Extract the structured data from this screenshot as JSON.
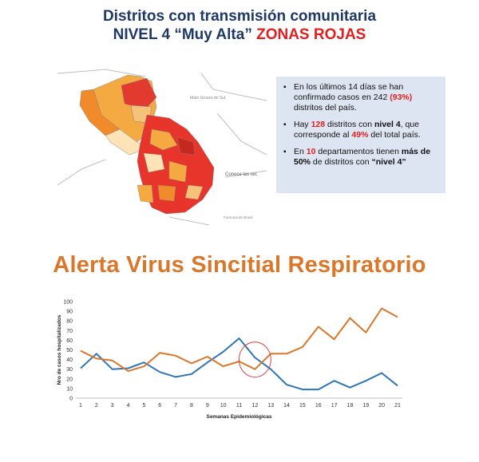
{
  "header": {
    "line1": "Distritos con transmisión comunitaria",
    "line2_prefix": "NIVEL 4 “Muy Alta” ",
    "line2_red": "ZONAS ROJAS"
  },
  "map": {
    "labels": {
      "mato_grosso": "Mato Grosso do Sul",
      "conoce": "Conoce las rec",
      "formosa": "Formosa de Brasil"
    }
  },
  "info": {
    "item1": {
      "a": "En los últimos 14 días se han confirmado casos en 242 ",
      "pct": "(93%)",
      "b": " distritos del país."
    },
    "item2": {
      "a": "Hay ",
      "n": "128",
      "b": " distritos con ",
      "lvl": "nivel 4",
      "c": ", que corresponde al ",
      "pct": "49%",
      "d": " del total país."
    },
    "item3": {
      "a": "En ",
      "n": "10",
      "b": " departamentos tienen ",
      "mas": "más de",
      "c": " ",
      "pct": "50%",
      "d": " de distritos con ",
      "lvl": "“nivel 4”"
    }
  },
  "section_title": "Alerta Virus Sincitial Respiratorio",
  "colors": {
    "title_blue": "#1f3864",
    "red": "#e02020",
    "orange_title": "#d9772a",
    "blue_series": "#2e75b6",
    "orange_series": "#d9772a",
    "circle": "#d94040"
  },
  "chart_data": {
    "type": "line",
    "xlabel": "Semanas Epidemiológicas",
    "ylabel": "Nro de casos hospitalizados",
    "x": [
      1,
      2,
      3,
      4,
      5,
      6,
      7,
      8,
      9,
      10,
      11,
      12,
      13,
      14,
      15,
      16,
      17,
      18,
      19,
      20,
      21
    ],
    "y_ticks": [
      0,
      10,
      20,
      30,
      40,
      50,
      60,
      70,
      80,
      90,
      100
    ],
    "ylim": [
      0,
      100
    ],
    "series": [
      {
        "color": "#2e75b6",
        "values": [
          31,
          46,
          30,
          31,
          37,
          27,
          22,
          25,
          37,
          48,
          62,
          42,
          30,
          14,
          9,
          9,
          18,
          11,
          18,
          26,
          13
        ]
      },
      {
        "color": "#d9772a",
        "values": [
          49,
          41,
          39,
          28,
          33,
          47,
          44,
          36,
          43,
          33,
          38,
          30,
          46,
          46,
          53,
          74,
          61,
          83,
          68,
          93,
          84
        ]
      }
    ],
    "annotation": {
      "type": "circle",
      "center_x": 12,
      "center_y": 40
    },
    "grid": false,
    "legend": "none"
  }
}
